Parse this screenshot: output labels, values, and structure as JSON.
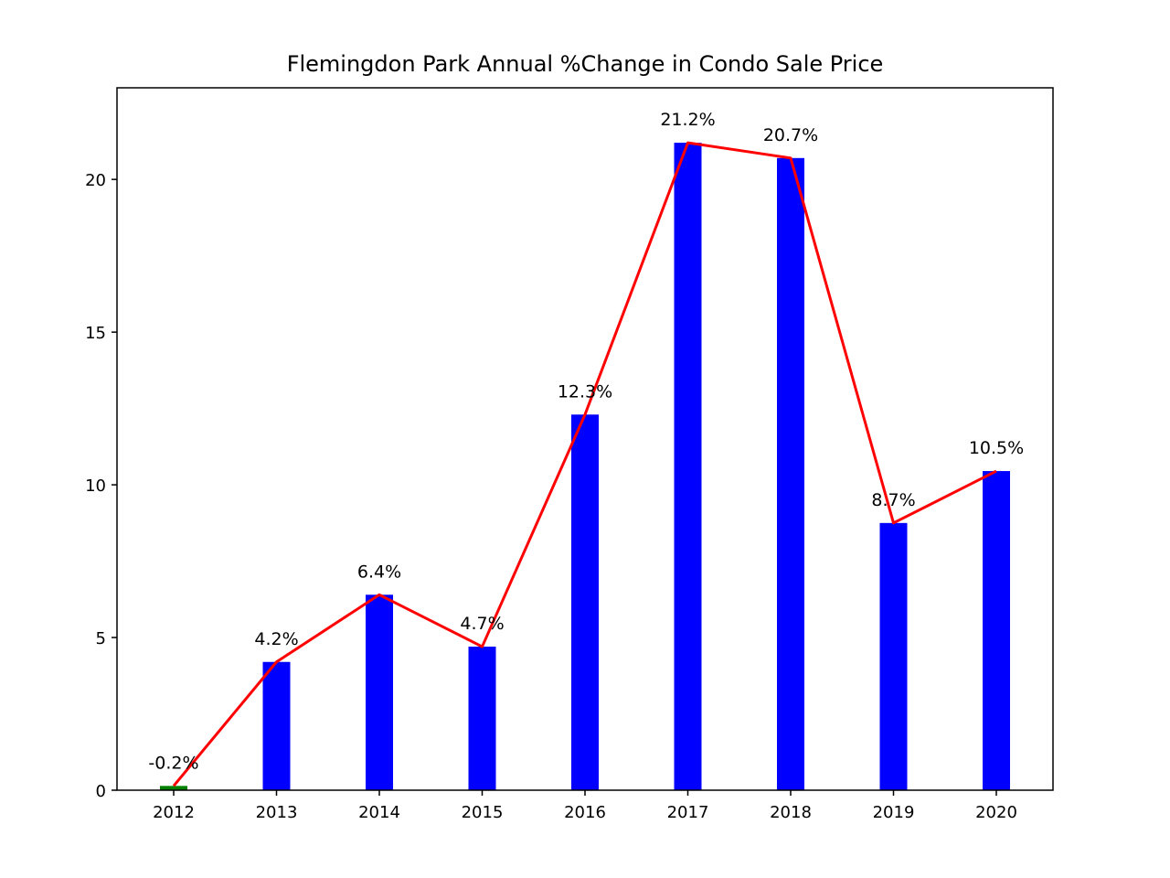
{
  "chart_data": {
    "type": "bar",
    "title": "Flemingdon Park Annual %Change in Condo Sale Price",
    "xlabel": "",
    "ylabel": "",
    "categories": [
      "2012",
      "2013",
      "2014",
      "2015",
      "2016",
      "2017",
      "2018",
      "2019",
      "2020"
    ],
    "values": [
      -0.2,
      4.2,
      6.4,
      4.7,
      12.3,
      21.2,
      20.7,
      8.7,
      10.5
    ],
    "drawn_values": [
      0.14,
      4.2,
      6.4,
      4.7,
      12.3,
      21.2,
      20.7,
      8.75,
      10.45
    ],
    "data_labels": [
      "-0.2%",
      "4.2%",
      "6.4%",
      "4.7%",
      "12.3%",
      "21.2%",
      "20.7%",
      "8.7%",
      "10.5%"
    ],
    "overlay_line": true,
    "ylim": [
      0,
      23
    ],
    "yticks": [
      0,
      5,
      10,
      15,
      20
    ],
    "grid": false,
    "colors": {
      "positive_bar": "#0000ff",
      "negative_bar": "#008000",
      "line": "#ff0000",
      "axes": "#000000"
    }
  }
}
